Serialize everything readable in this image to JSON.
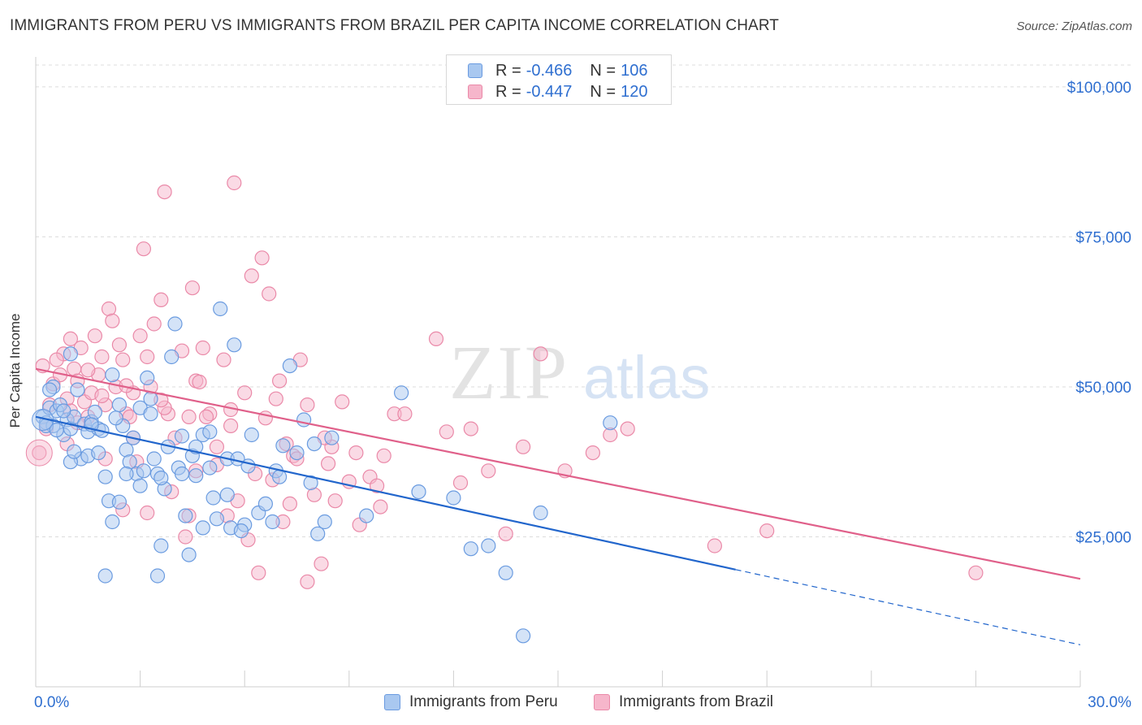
{
  "title": "IMMIGRANTS FROM PERU VS IMMIGRANTS FROM BRAZIL PER CAPITA INCOME CORRELATION CHART",
  "source": "Source: ZipAtlas.com",
  "watermark": {
    "zip": "ZIP",
    "atlas": "atlas"
  },
  "colors": {
    "peru_fill": "#a9c8f0",
    "peru_stroke": "#6a9be0",
    "peru_line": "#2266cc",
    "brazil_fill": "#f6b6cb",
    "brazil_stroke": "#ea89a8",
    "brazil_line": "#e0608a",
    "value_text": "#2f6fd0",
    "grid": "#dcdcdc"
  },
  "legend": {
    "peru": {
      "r_label": "R =",
      "r_value": "-0.466",
      "n_label": "N =",
      "n_value": "106"
    },
    "brazil": {
      "r_label": "R =",
      "r_value": "-0.447",
      "n_label": "N =",
      "n_value": "120"
    }
  },
  "bottom_legend": {
    "peru": "Immigrants from Peru",
    "brazil": "Immigrants from Brazil"
  },
  "chart_data": {
    "type": "scatter",
    "title": "IMMIGRANTS FROM PERU VS IMMIGRANTS FROM BRAZIL PER CAPITA INCOME CORRELATION CHART",
    "xlabel": "",
    "ylabel": "Per Capita Income",
    "xlim": [
      0,
      30
    ],
    "ylim": [
      0,
      105000
    ],
    "x_tick_labels": [
      {
        "value": 0,
        "label": "0.0%"
      },
      {
        "value": 30,
        "label": "30.0%"
      }
    ],
    "y_tick_labels": [
      {
        "value": 25000,
        "label": "$25,000"
      },
      {
        "value": 50000,
        "label": "$50,000"
      },
      {
        "value": 75000,
        "label": "$75,000"
      },
      {
        "value": 100000,
        "label": "$100,000"
      }
    ],
    "grid": true,
    "legend_position": "top-center",
    "series": [
      {
        "name": "Immigrants from Peru",
        "trend": {
          "x0": 0,
          "y0": 45000,
          "x1": 30,
          "y1": 7000,
          "solid_until_x": 20.1
        },
        "points": [
          [
            0.2,
            45000
          ],
          [
            0.3,
            44000
          ],
          [
            0.4,
            46500
          ],
          [
            0.5,
            43500
          ],
          [
            0.6,
            46000
          ],
          [
            0.7,
            47000
          ],
          [
            0.8,
            42000
          ],
          [
            0.9,
            44500
          ],
          [
            1.0,
            43000
          ],
          [
            1.1,
            45000
          ],
          [
            0.5,
            50000
          ],
          [
            1.0,
            55500
          ],
          [
            1.2,
            49500
          ],
          [
            1.3,
            38000
          ],
          [
            1.4,
            43800
          ],
          [
            1.5,
            42500
          ],
          [
            1.6,
            44200
          ],
          [
            1.7,
            45800
          ],
          [
            1.8,
            43000
          ],
          [
            1.9,
            42700
          ],
          [
            2.0,
            35000
          ],
          [
            2.1,
            31000
          ],
          [
            2.2,
            52000
          ],
          [
            2.4,
            47000
          ],
          [
            2.5,
            43500
          ],
          [
            2.6,
            39500
          ],
          [
            2.7,
            37500
          ],
          [
            2.8,
            41500
          ],
          [
            2.9,
            35500
          ],
          [
            3.0,
            46500
          ],
          [
            3.1,
            36000
          ],
          [
            3.2,
            51500
          ],
          [
            3.3,
            48000
          ],
          [
            3.4,
            38000
          ],
          [
            3.5,
            35500
          ],
          [
            3.6,
            23500
          ],
          [
            3.7,
            33000
          ],
          [
            3.8,
            40000
          ],
          [
            3.9,
            55000
          ],
          [
            4.0,
            60500
          ],
          [
            4.1,
            36500
          ],
          [
            4.2,
            35500
          ],
          [
            4.3,
            28500
          ],
          [
            4.4,
            22000
          ],
          [
            4.5,
            38500
          ],
          [
            4.6,
            40000
          ],
          [
            4.8,
            42000
          ],
          [
            5.0,
            36500
          ],
          [
            5.1,
            31500
          ],
          [
            5.2,
            28000
          ],
          [
            5.3,
            63000
          ],
          [
            5.5,
            38000
          ],
          [
            5.6,
            26500
          ],
          [
            5.7,
            57000
          ],
          [
            5.8,
            38000
          ],
          [
            6.0,
            27000
          ],
          [
            6.2,
            42000
          ],
          [
            6.4,
            29000
          ],
          [
            6.6,
            30500
          ],
          [
            6.8,
            27500
          ],
          [
            6.9,
            36000
          ],
          [
            7.0,
            35000
          ],
          [
            7.3,
            53500
          ],
          [
            7.5,
            39000
          ],
          [
            7.7,
            44500
          ],
          [
            7.9,
            34000
          ],
          [
            8.1,
            25500
          ],
          [
            8.3,
            27500
          ],
          [
            8.5,
            41500
          ],
          [
            9.5,
            28500
          ],
          [
            10.5,
            49000
          ],
          [
            11.0,
            32500
          ],
          [
            12.0,
            31500
          ],
          [
            12.5,
            23000
          ],
          [
            13.0,
            23500
          ],
          [
            13.5,
            19000
          ],
          [
            14.0,
            8500
          ],
          [
            14.5,
            29000
          ],
          [
            16.5,
            44000
          ],
          [
            2.2,
            27500
          ],
          [
            1.5,
            38500
          ],
          [
            0.4,
            49500
          ],
          [
            2.0,
            18500
          ],
          [
            3.5,
            18500
          ],
          [
            4.8,
            26500
          ],
          [
            1.8,
            39000
          ],
          [
            2.6,
            35500
          ],
          [
            5.5,
            32000
          ],
          [
            3.0,
            33500
          ],
          [
            1.0,
            37500
          ],
          [
            0.3,
            43500
          ],
          [
            0.8,
            46000
          ],
          [
            1.6,
            43700
          ],
          [
            2.3,
            44800
          ],
          [
            3.3,
            45500
          ],
          [
            4.2,
            41800
          ],
          [
            5.0,
            42500
          ],
          [
            6.1,
            36800
          ],
          [
            7.1,
            40200
          ],
          [
            8.0,
            40500
          ],
          [
            0.6,
            42800
          ],
          [
            1.1,
            39200
          ],
          [
            2.4,
            30800
          ],
          [
            3.6,
            34800
          ],
          [
            4.6,
            35200
          ],
          [
            5.9,
            26000
          ]
        ]
      },
      {
        "name": "Immigrants from Brazil",
        "trend": {
          "x0": 0,
          "y0": 53000,
          "x1": 30,
          "y1": 18000
        },
        "points": [
          [
            0.1,
            39000
          ],
          [
            0.3,
            43000
          ],
          [
            0.5,
            50500
          ],
          [
            0.7,
            52000
          ],
          [
            0.8,
            55500
          ],
          [
            0.9,
            48000
          ],
          [
            1.0,
            58000
          ],
          [
            1.1,
            53000
          ],
          [
            1.2,
            51000
          ],
          [
            1.3,
            56500
          ],
          [
            1.4,
            47500
          ],
          [
            1.5,
            45000
          ],
          [
            1.6,
            49000
          ],
          [
            1.7,
            58500
          ],
          [
            1.8,
            52000
          ],
          [
            1.9,
            55000
          ],
          [
            2.0,
            47000
          ],
          [
            2.1,
            63000
          ],
          [
            2.2,
            61000
          ],
          [
            2.3,
            50000
          ],
          [
            2.4,
            57000
          ],
          [
            2.5,
            54500
          ],
          [
            2.6,
            45500
          ],
          [
            2.7,
            45000
          ],
          [
            2.8,
            49000
          ],
          [
            2.9,
            37500
          ],
          [
            3.0,
            58500
          ],
          [
            3.1,
            73000
          ],
          [
            3.2,
            55000
          ],
          [
            3.4,
            60500
          ],
          [
            3.6,
            64500
          ],
          [
            3.7,
            82500
          ],
          [
            3.8,
            45500
          ],
          [
            4.0,
            41500
          ],
          [
            4.2,
            56000
          ],
          [
            4.4,
            45000
          ],
          [
            4.5,
            66500
          ],
          [
            4.6,
            51000
          ],
          [
            4.8,
            56500
          ],
          [
            5.0,
            45500
          ],
          [
            5.2,
            40000
          ],
          [
            5.4,
            54500
          ],
          [
            5.6,
            43500
          ],
          [
            5.8,
            31000
          ],
          [
            6.0,
            49000
          ],
          [
            6.2,
            68500
          ],
          [
            6.5,
            71500
          ],
          [
            6.7,
            65500
          ],
          [
            6.9,
            48000
          ],
          [
            7.0,
            51000
          ],
          [
            7.2,
            40500
          ],
          [
            7.4,
            38500
          ],
          [
            7.6,
            54500
          ],
          [
            7.8,
            47000
          ],
          [
            8.0,
            32000
          ],
          [
            8.2,
            20500
          ],
          [
            8.5,
            40000
          ],
          [
            8.8,
            47500
          ],
          [
            9.2,
            39000
          ],
          [
            9.6,
            35000
          ],
          [
            9.9,
            30000
          ],
          [
            10.3,
            45500
          ],
          [
            10.6,
            45500
          ],
          [
            11.5,
            58000
          ],
          [
            11.8,
            42500
          ],
          [
            12.2,
            34000
          ],
          [
            12.5,
            43000
          ],
          [
            13.0,
            36000
          ],
          [
            13.5,
            25500
          ],
          [
            14.0,
            40000
          ],
          [
            14.5,
            55500
          ],
          [
            15.2,
            36000
          ],
          [
            16.0,
            39000
          ],
          [
            16.5,
            42000
          ],
          [
            17.0,
            43000
          ],
          [
            19.5,
            23500
          ],
          [
            21.0,
            26000
          ],
          [
            27.0,
            19000
          ],
          [
            5.7,
            84000
          ],
          [
            6.4,
            19000
          ],
          [
            7.8,
            17500
          ],
          [
            4.3,
            25000
          ],
          [
            3.2,
            29000
          ],
          [
            2.5,
            29500
          ],
          [
            4.6,
            36000
          ],
          [
            5.2,
            37000
          ],
          [
            6.1,
            24500
          ],
          [
            7.1,
            27500
          ],
          [
            8.6,
            31000
          ],
          [
            9.3,
            27000
          ],
          [
            10.0,
            38500
          ],
          [
            1.2,
            44000
          ],
          [
            1.9,
            48500
          ],
          [
            2.8,
            41500
          ],
          [
            3.7,
            46500
          ],
          [
            4.9,
            45000
          ],
          [
            6.3,
            35500
          ],
          [
            7.5,
            38000
          ],
          [
            8.3,
            41500
          ],
          [
            9.8,
            33500
          ],
          [
            3.3,
            50000
          ],
          [
            2.0,
            38000
          ],
          [
            1.0,
            46000
          ],
          [
            0.6,
            54500
          ],
          [
            0.4,
            47000
          ],
          [
            3.9,
            32500
          ],
          [
            4.4,
            28500
          ],
          [
            5.5,
            28500
          ],
          [
            6.8,
            34500
          ],
          [
            7.3,
            30500
          ],
          [
            0.2,
            53500
          ],
          [
            1.5,
            52800
          ],
          [
            2.6,
            50200
          ],
          [
            3.6,
            47800
          ],
          [
            4.7,
            50800
          ],
          [
            5.6,
            46200
          ],
          [
            6.6,
            44800
          ],
          [
            8.4,
            37200
          ],
          [
            9.0,
            34200
          ],
          [
            0.9,
            40500
          ]
        ]
      }
    ]
  }
}
